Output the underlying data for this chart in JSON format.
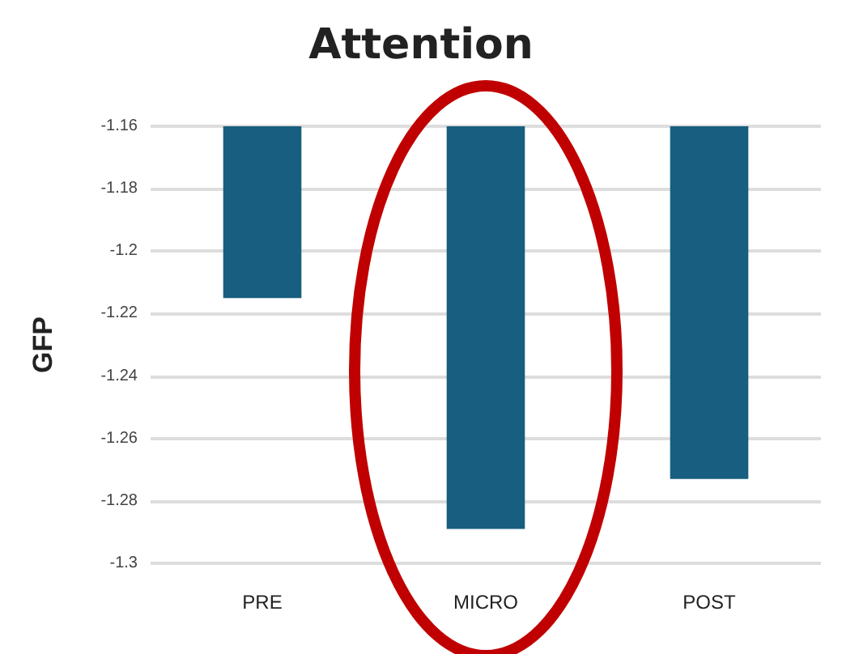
{
  "chart_data": {
    "type": "bar",
    "title": "Attention",
    "ylabel": "GFP",
    "categories": [
      "PRE",
      "MICRO",
      "POST"
    ],
    "values": [
      -1.215,
      -1.289,
      -1.273
    ],
    "color": "#175e80",
    "ylim": [
      -1.3,
      -1.16
    ],
    "yticks": [
      -1.3,
      -1.28,
      -1.26,
      -1.24,
      -1.22,
      -1.2,
      -1.18,
      -1.16
    ],
    "grid": "y"
  }
}
